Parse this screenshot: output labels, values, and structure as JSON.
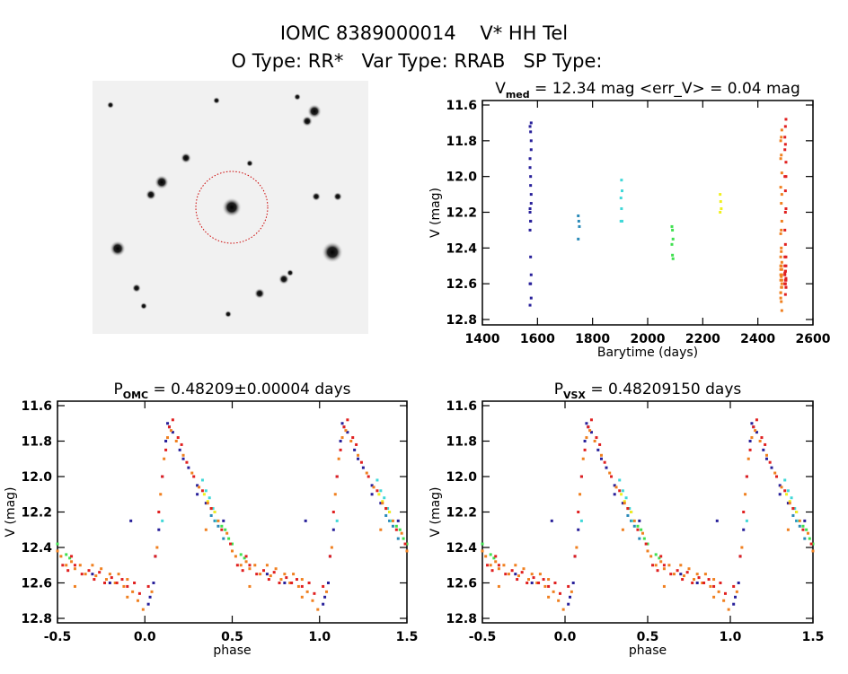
{
  "header": {
    "title": "IOMC 8389000014    V* HH Tel",
    "subtitle": "O Type: RR*   Var Type: RRAB   SP Type:"
  },
  "colors": {
    "season_1575": "#28209a",
    "season_1750": "#2a8ab8",
    "season_1905": "#40d8d8",
    "season_2090": "#40e050",
    "season_2265": "#f0f020",
    "season_2485": "#f08020",
    "season_2500": "#e02020",
    "aperture_circle": "#cc0000"
  },
  "chart_data": [
    {
      "type": "image",
      "name": "finder-image",
      "description_visible": "star field with dashed red aperture circle around target"
    },
    {
      "type": "scatter",
      "title_main": "V",
      "title_sub": "med",
      "title_rest": " = 12.34 mag <err_V> = 0.04 mag",
      "xlabel": "Barytime (days)",
      "ylabel": "V (mag)",
      "xlim": [
        1400,
        2600
      ],
      "ylim": [
        12.8,
        11.6
      ],
      "y_inverted": true,
      "xticks": [
        "1400",
        "1600",
        "1800",
        "2000",
        "2200",
        "2400",
        "2600"
      ],
      "yticks": [
        "11.6",
        "11.8",
        "12.0",
        "12.2",
        "12.4",
        "12.6",
        "12.8"
      ]
    },
    {
      "type": "scatter",
      "title_main": "P",
      "title_sub": "OMC",
      "title_rest": " = 0.48209±0.00004 days",
      "xlabel": "phase",
      "ylabel": "V (mag)",
      "xlim": [
        -0.5,
        1.5
      ],
      "ylim": [
        12.8,
        11.6
      ],
      "y_inverted": true,
      "xticks": [
        "-0.5",
        "0.0",
        "0.5",
        "1.0",
        "1.5"
      ],
      "yticks": [
        "11.6",
        "11.8",
        "12.0",
        "12.2",
        "12.4",
        "12.6",
        "12.8"
      ]
    },
    {
      "type": "scatter",
      "title_main": "P",
      "title_sub": "VSX",
      "title_rest": " = 0.48209150 days",
      "xlabel": "phase",
      "ylabel": "V (mag)",
      "xlim": [
        -0.5,
        1.5
      ],
      "ylim": [
        12.8,
        11.6
      ],
      "y_inverted": true,
      "xticks": [
        "-0.5",
        "0.0",
        "0.5",
        "1.0",
        "1.5"
      ],
      "yticks": [
        "11.6",
        "11.8",
        "12.0",
        "12.2",
        "12.4",
        "12.6",
        "12.8"
      ]
    }
  ],
  "seasons": [
    {
      "t": 1575,
      "color": "#28209a",
      "points": [
        [
          0.08,
          12.3
        ],
        [
          0.1,
          12.0
        ],
        [
          0.12,
          11.8
        ],
        [
          0.14,
          11.72
        ],
        [
          0.16,
          11.75
        ],
        [
          0.2,
          11.85
        ],
        [
          0.25,
          11.95
        ],
        [
          0.3,
          12.05
        ],
        [
          0.35,
          12.15
        ],
        [
          0.4,
          12.2
        ],
        [
          0.45,
          12.25
        ],
        [
          0.7,
          12.55
        ],
        [
          0.8,
          12.6
        ],
        [
          0.05,
          12.6
        ],
        [
          0.03,
          12.68
        ],
        [
          0.02,
          12.72
        ],
        [
          0.92,
          12.25
        ],
        [
          0.3,
          12.1
        ],
        [
          0.38,
          12.18
        ],
        [
          0.06,
          12.45
        ],
        [
          0.13,
          11.7
        ],
        [
          0.22,
          11.9
        ]
      ]
    },
    {
      "t": 1750,
      "color": "#2a8ab8",
      "points": [
        [
          0.38,
          12.22
        ],
        [
          0.4,
          12.25
        ],
        [
          0.42,
          12.28
        ],
        [
          0.45,
          12.35
        ]
      ]
    },
    {
      "t": 1905,
      "color": "#40d8d8",
      "points": [
        [
          0.1,
          12.25
        ],
        [
          0.33,
          12.02
        ],
        [
          0.35,
          12.08
        ],
        [
          0.37,
          12.12
        ],
        [
          0.39,
          12.18
        ],
        [
          0.41,
          12.25
        ]
      ]
    },
    {
      "t": 2090,
      "color": "#40e050",
      "points": [
        [
          0.44,
          12.28
        ],
        [
          0.46,
          12.3
        ],
        [
          0.48,
          12.35
        ],
        [
          0.5,
          12.38
        ],
        [
          0.55,
          12.44
        ],
        [
          0.57,
          12.46
        ]
      ]
    },
    {
      "t": 2265,
      "color": "#f0f020",
      "points": [
        [
          0.34,
          12.1
        ],
        [
          0.36,
          12.14
        ],
        [
          0.38,
          12.18
        ],
        [
          0.4,
          12.2
        ]
      ]
    },
    {
      "t": 2485,
      "color": "#f08020",
      "points": [
        [
          0.52,
          12.45
        ],
        [
          0.55,
          12.5
        ],
        [
          0.58,
          12.48
        ],
        [
          0.6,
          12.52
        ],
        [
          0.63,
          12.5
        ],
        [
          0.66,
          12.55
        ],
        [
          0.7,
          12.5
        ],
        [
          0.72,
          12.56
        ],
        [
          0.75,
          12.52
        ],
        [
          0.78,
          12.58
        ],
        [
          0.8,
          12.55
        ],
        [
          0.83,
          12.6
        ],
        [
          0.85,
          12.55
        ],
        [
          0.88,
          12.62
        ],
        [
          0.9,
          12.58
        ],
        [
          0.93,
          12.65
        ],
        [
          0.96,
          12.7
        ],
        [
          0.99,
          12.75
        ],
        [
          0.04,
          12.65
        ],
        [
          0.07,
          12.4
        ],
        [
          0.09,
          12.1
        ],
        [
          0.11,
          11.9
        ],
        [
          0.13,
          11.78
        ],
        [
          0.15,
          11.74
        ],
        [
          0.18,
          11.8
        ],
        [
          0.22,
          11.88
        ],
        [
          0.27,
          11.98
        ],
        [
          0.31,
          12.06
        ],
        [
          0.36,
          12.15
        ],
        [
          0.42,
          12.25
        ],
        [
          0.47,
          12.32
        ],
        [
          0.5,
          12.42
        ],
        [
          0.6,
          12.62
        ],
        [
          0.9,
          12.68
        ],
        [
          0.35,
          12.3
        ]
      ]
    },
    {
      "t": 2500,
      "color": "#e02020",
      "points": [
        [
          0.53,
          12.5
        ],
        [
          0.56,
          12.53
        ],
        [
          0.6,
          12.5
        ],
        [
          0.64,
          12.55
        ],
        [
          0.68,
          12.53
        ],
        [
          0.71,
          12.58
        ],
        [
          0.74,
          12.54
        ],
        [
          0.77,
          12.6
        ],
        [
          0.81,
          12.57
        ],
        [
          0.84,
          12.6
        ],
        [
          0.87,
          12.58
        ],
        [
          0.9,
          12.62
        ],
        [
          0.94,
          12.6
        ],
        [
          0.97,
          12.66
        ],
        [
          0.02,
          12.62
        ],
        [
          0.06,
          12.45
        ],
        [
          0.08,
          12.2
        ],
        [
          0.1,
          12.0
        ],
        [
          0.12,
          11.85
        ],
        [
          0.14,
          11.72
        ],
        [
          0.16,
          11.68
        ],
        [
          0.19,
          11.78
        ],
        [
          0.21,
          11.82
        ],
        [
          0.24,
          11.92
        ],
        [
          0.28,
          12.0
        ],
        [
          0.33,
          12.08
        ],
        [
          0.38,
          12.18
        ],
        [
          0.44,
          12.3
        ],
        [
          0.49,
          12.38
        ],
        [
          0.58,
          12.45
        ]
      ]
    }
  ]
}
